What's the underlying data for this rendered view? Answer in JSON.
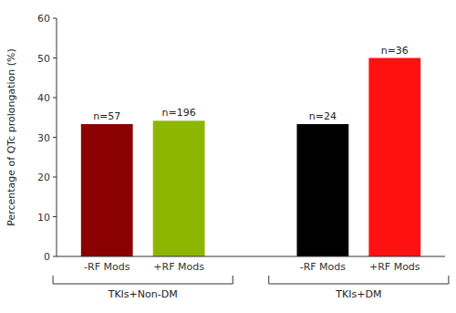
{
  "chart_data": {
    "type": "bar",
    "y_label": "Percentage of QTc prolongation (%)",
    "categories": [
      "-RF Mods",
      "+RF Mods",
      "-RF Mods",
      "+RF Mods"
    ],
    "values": [
      33.33,
      34.18,
      33.33,
      50.0
    ],
    "colors": [
      "#8B0000",
      "#8DB600",
      "#000000",
      "#FF1111"
    ],
    "annotations": [
      "n=57",
      "n=196",
      "n=24",
      "n=36"
    ],
    "groups": [
      {
        "label": "TKIs+Non-DM",
        "size": 2
      },
      {
        "label": "TKIs+DM",
        "size": 2
      }
    ],
    "ylim": [
      0,
      60
    ],
    "yticks": [
      0,
      10,
      20,
      30,
      40,
      50,
      60
    ],
    "grid": false
  }
}
